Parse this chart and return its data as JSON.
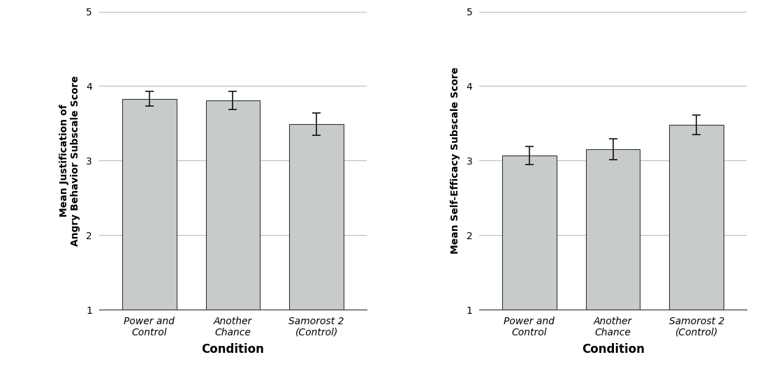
{
  "chart1": {
    "ylabel": "Mean Justification of\nAngry Behavior Subscale Score",
    "xlabel": "Condition",
    "categories": [
      "Power and\nControl",
      "Another\nChance",
      "Samorost 2\n(Control)"
    ],
    "values": [
      3.83,
      3.81,
      3.49
    ],
    "errors": [
      0.1,
      0.12,
      0.15
    ],
    "ylim": [
      1,
      5
    ],
    "yticks": [
      1,
      2,
      3,
      4,
      5
    ]
  },
  "chart2": {
    "ylabel": "Mean Self-Efficacy Subscale Score",
    "xlabel": "Condition",
    "categories": [
      "Power and\nControl",
      "Another\nChance",
      "Samorost 2\n(Control)"
    ],
    "values": [
      3.07,
      3.15,
      3.48
    ],
    "errors": [
      0.12,
      0.14,
      0.13
    ],
    "ylim": [
      1,
      5
    ],
    "yticks": [
      1,
      2,
      3,
      4,
      5
    ]
  },
  "bar_color": "#c8ccc8",
  "bar_edgecolor": "#333333",
  "bar_width": 0.65,
  "bar_bottom": 1,
  "errorbar_color": "#111111",
  "errorbar_capsize": 4,
  "errorbar_linewidth": 1.2,
  "grid_color": "#bbbbbb",
  "background_color": "#ffffff",
  "xlabel_fontsize": 12,
  "ylabel_fontsize": 10,
  "tick_fontsize": 10,
  "xlabel_fontweight": "bold",
  "ylabel_fontweight": "bold"
}
